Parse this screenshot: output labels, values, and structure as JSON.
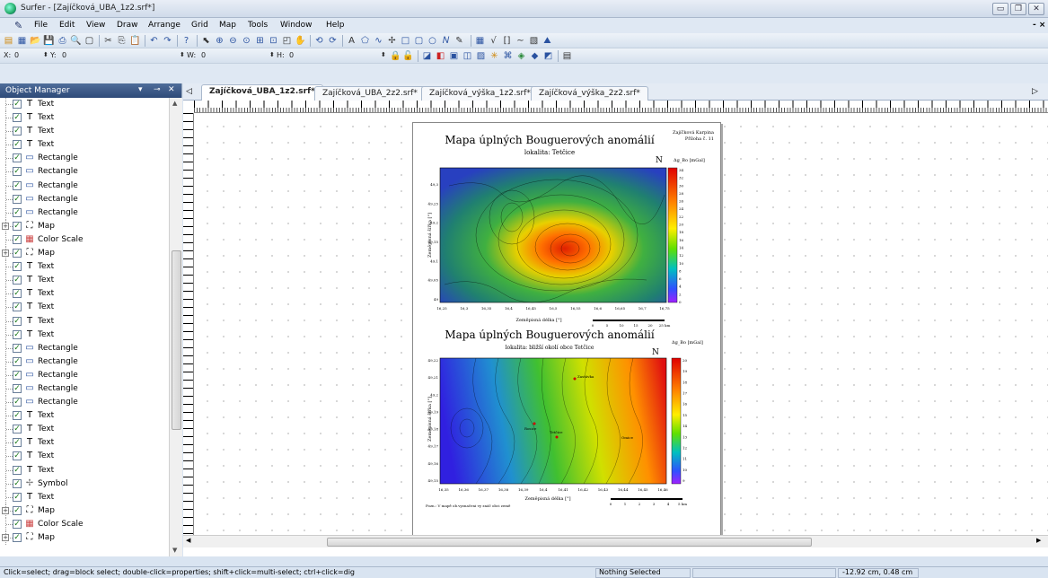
{
  "window": {
    "title": "Surfer - [Zajíčková_UBA_1z2.srf*]",
    "min": "▭",
    "max": "🗗",
    "close": "✕",
    "doc_close": "- ×"
  },
  "menu": [
    "File",
    "Edit",
    "View",
    "Draw",
    "Arrange",
    "Grid",
    "Map",
    "Tools",
    "Window",
    "Help"
  ],
  "toolbar3": {
    "x_label": "X:",
    "x_value": "0",
    "y_label": "Y:",
    "y_value": "0",
    "w_label": "W:",
    "w_value": "0",
    "h_label": "H:",
    "h_value": "0"
  },
  "object_manager": {
    "title": "Object Manager",
    "buttons": "▾ ↕ ✕",
    "items": [
      {
        "label": "Text",
        "type": "text",
        "expand": false
      },
      {
        "label": "Text",
        "type": "text",
        "expand": false
      },
      {
        "label": "Text",
        "type": "text",
        "expand": false
      },
      {
        "label": "Text",
        "type": "text",
        "expand": false
      },
      {
        "label": "Rectangle",
        "type": "rect",
        "expand": false
      },
      {
        "label": "Rectangle",
        "type": "rect",
        "expand": false
      },
      {
        "label": "Rectangle",
        "type": "rect",
        "expand": false
      },
      {
        "label": "Rectangle",
        "type": "rect",
        "expand": false
      },
      {
        "label": "Rectangle",
        "type": "rect",
        "expand": false
      },
      {
        "label": "Map",
        "type": "map",
        "expand": true
      },
      {
        "label": "Color Scale",
        "type": "scale",
        "expand": false
      },
      {
        "label": "Map",
        "type": "map",
        "expand": true
      },
      {
        "label": "Text",
        "type": "text",
        "expand": false
      },
      {
        "label": "Text",
        "type": "text",
        "expand": false
      },
      {
        "label": "Text",
        "type": "text",
        "expand": false
      },
      {
        "label": "Text",
        "type": "text",
        "expand": false
      },
      {
        "label": "Text",
        "type": "text",
        "expand": false
      },
      {
        "label": "Text",
        "type": "text",
        "expand": false
      },
      {
        "label": "Rectangle",
        "type": "rect",
        "expand": false
      },
      {
        "label": "Rectangle",
        "type": "rect",
        "expand": false
      },
      {
        "label": "Rectangle",
        "type": "rect",
        "expand": false
      },
      {
        "label": "Rectangle",
        "type": "rect",
        "expand": false
      },
      {
        "label": "Rectangle",
        "type": "rect",
        "expand": false
      },
      {
        "label": "Text",
        "type": "text",
        "expand": false
      },
      {
        "label": "Text",
        "type": "text",
        "expand": false
      },
      {
        "label": "Text",
        "type": "text",
        "expand": false
      },
      {
        "label": "Text",
        "type": "text",
        "expand": false
      },
      {
        "label": "Text",
        "type": "text",
        "expand": false
      },
      {
        "label": "Symbol",
        "type": "symbol",
        "expand": false
      },
      {
        "label": "Text",
        "type": "text",
        "expand": false
      },
      {
        "label": "Map",
        "type": "map",
        "expand": true
      },
      {
        "label": "Color Scale",
        "type": "scale",
        "expand": false
      },
      {
        "label": "Map",
        "type": "map",
        "expand": true
      }
    ]
  },
  "tabs": [
    "Zajíčková_UBA_1z2.srf*",
    "Zajíčková_UBA_2z2.srf*",
    "Zajíčková_výška_1z2.srf*",
    "Zajíčková_výška_2z2.srf*"
  ],
  "page": {
    "header1": "Zajíčková Karpina",
    "header2": "Příloha č. 11",
    "map1_title": "Mapa úplných Bouguerových anomálií",
    "map1_sub": "lokalita: Tetčice",
    "map1_scale_title": "Δg_Bo [mGal]",
    "map1_scale": [
      "34",
      "32",
      "30",
      "28",
      "26",
      "24",
      "22",
      "20",
      "18",
      "16",
      "14",
      "12",
      "10",
      "8",
      "6",
      "4",
      "2",
      "0"
    ],
    "map1_yaxis": "Zeměpisná šířka [°]",
    "map1_yticks": [
      "49,3",
      "49,25",
      "49,2",
      "49,15",
      "49,1",
      "49,05",
      "49"
    ],
    "map1_xaxis": "Zeměpisná délka [°]",
    "map1_xticks": [
      "16,25",
      "16,3",
      "16,35",
      "16,4",
      "16,45",
      "16,5",
      "16,55",
      "16,6",
      "16,65",
      "16,7",
      "16,75"
    ],
    "map1_bar": [
      "0",
      "5",
      "10",
      "15",
      "20",
      "25 km"
    ],
    "map2_title": "Mapa úplných Bouguerových anomálií",
    "map2_sub": "lokalita: bližší okolí obce Tetčice",
    "map2_scale_title": "Δg_Bo [mGal]",
    "map2_scale": [
      "20",
      "19",
      "18",
      "17",
      "16",
      "15",
      "14",
      "13",
      "12",
      "11",
      "10",
      "9"
    ],
    "map2_yaxis": "Zeměpisná šířka [°]",
    "map2_yticks": [
      "49,22",
      "49,21",
      "49,2",
      "49,19",
      "49,18",
      "49,17",
      "49,16",
      "49,15"
    ],
    "map2_xaxis": "Zeměpisná délka [°]",
    "map2_xticks": [
      "16,35",
      "16,36",
      "16,37",
      "16,38",
      "16,39",
      "16,4",
      "16,41",
      "16,42",
      "16,43",
      "16,44",
      "16,45",
      "16,46"
    ],
    "map2_bar": [
      "0",
      "1",
      "2",
      "3",
      "4",
      "5 km"
    ],
    "map2_places": [
      "Zastávka",
      "Rosice",
      "Tetčice",
      "Omice"
    ],
    "note": "Pozn.: V mapě ob.vyznačeni vy znáč obci země",
    "north": "N"
  },
  "status": {
    "hint": "Click=select; drag=block select; double-click=properties; shift+click=multi-select; ctrl+click=dig",
    "selection": "Nothing Selected",
    "coords": "-12.92 cm, 0.48 cm"
  }
}
